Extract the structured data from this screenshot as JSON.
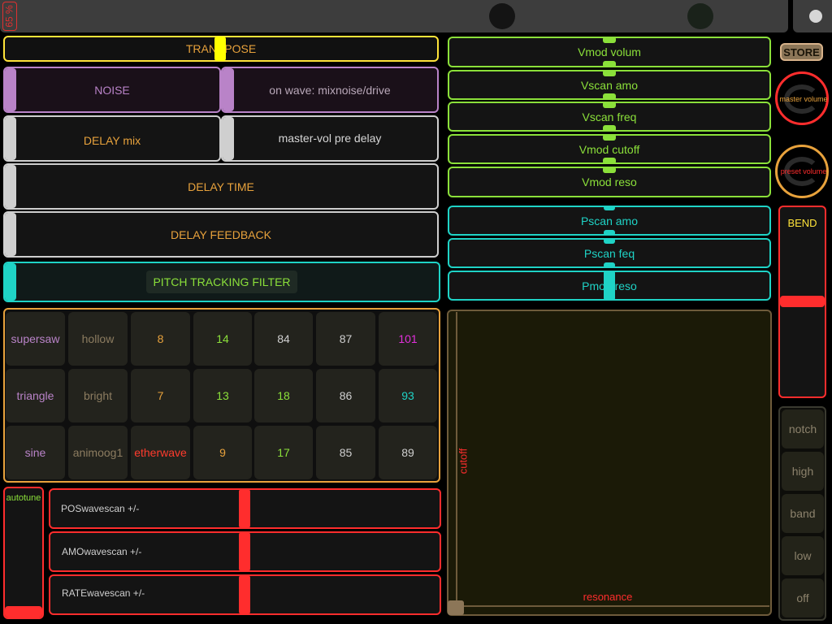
{
  "status": {
    "battery_label": "65 %"
  },
  "left": {
    "transpose": "TRANSPOSE",
    "noise": "NOISE",
    "on_wave": "on wave: mixnoise/drive",
    "delay_mix": "DELAY mix",
    "master_vol_pre_delay": "master-vol pre delay",
    "delay_time": "DELAY TIME",
    "delay_feedback": "DELAY FEEDBACK",
    "pitch_tracking_filter": "PITCH TRACKING FILTER"
  },
  "grid": {
    "rows": [
      [
        "supersaw",
        "hollow",
        "8",
        "14",
        "84",
        "87",
        "101"
      ],
      [
        "triangle",
        "bright",
        "7",
        "13",
        "18",
        "86",
        "93"
      ],
      [
        "sine",
        "animoog1",
        "etherwave",
        "9",
        "17",
        "85",
        "89"
      ]
    ]
  },
  "bottom_left": {
    "autotune": "autotune",
    "pos_wavescan": "POSwavescan +/-",
    "amo_wavescan": "AMOwavescan +/-",
    "rate_wavescan": "RATEwavescan +/-"
  },
  "right_sliders": {
    "green": [
      "Vmod volum",
      "Vscan amo",
      "Vscan freq",
      "Vmod cutoff",
      "Vmod reso"
    ],
    "cyan": [
      "Pscan amo",
      "Pscan feq",
      "Pmod reso"
    ]
  },
  "xy_pad": {
    "y_label": "cutoff",
    "x_label": "resonance"
  },
  "side": {
    "store": "STORE",
    "master_volume": "master volume",
    "preset_volume": "preset volume",
    "bend": "BEND",
    "filter_modes": [
      "notch",
      "high",
      "band",
      "low",
      "off"
    ]
  },
  "colors": {
    "orange": "#e8a23c",
    "green": "#8be03a",
    "cyan": "#1fd3c6",
    "red": "#ff2d2d",
    "purple": "#b983c8"
  }
}
